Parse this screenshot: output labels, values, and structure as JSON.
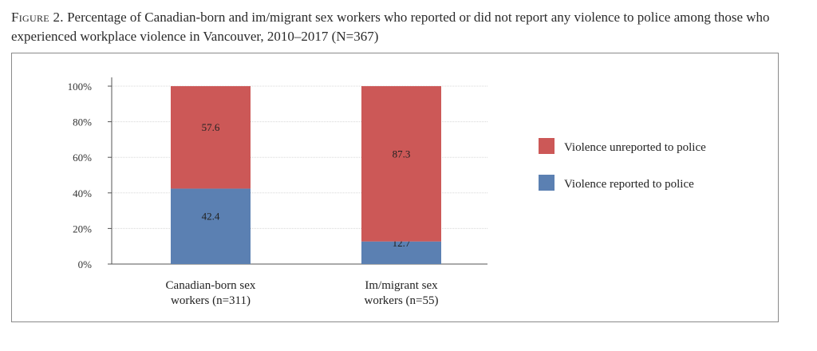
{
  "caption": {
    "figure_label": "Figure 2.",
    "text": "Percentage of Canadian-born and im/migrant sex workers who reported or did not report any violence to police among those who experienced workplace violence in Vancouver, 2010–2017 (N=367)"
  },
  "chart_data": {
    "type": "bar",
    "stacked": true,
    "categories": [
      "Canadian-born sex workers (n=311)",
      "Im/migrant sex workers (n=55)"
    ],
    "category_lines": [
      [
        "Canadian-born sex",
        "workers (n=311)"
      ],
      [
        "Im/migrant sex",
        "workers (n=55)"
      ]
    ],
    "series": [
      {
        "name": "Violence reported to police",
        "values": [
          42.4,
          12.7
        ],
        "color": "#5b80b2",
        "labels": [
          "42.4",
          "12.7"
        ]
      },
      {
        "name": "Violence unreported to police",
        "values": [
          57.6,
          87.3
        ],
        "color": "#cc5857",
        "labels": [
          "57.6",
          "87.3"
        ]
      }
    ],
    "ylim": [
      0,
      100
    ],
    "yticks": [
      "0%",
      "20%",
      "40%",
      "60%",
      "80%",
      "100%"
    ],
    "ytick_values": [
      0,
      20,
      40,
      60,
      80,
      100
    ],
    "grid": true,
    "legend_position": "right",
    "legend_order": [
      "Violence unreported to police",
      "Violence reported to police"
    ]
  }
}
